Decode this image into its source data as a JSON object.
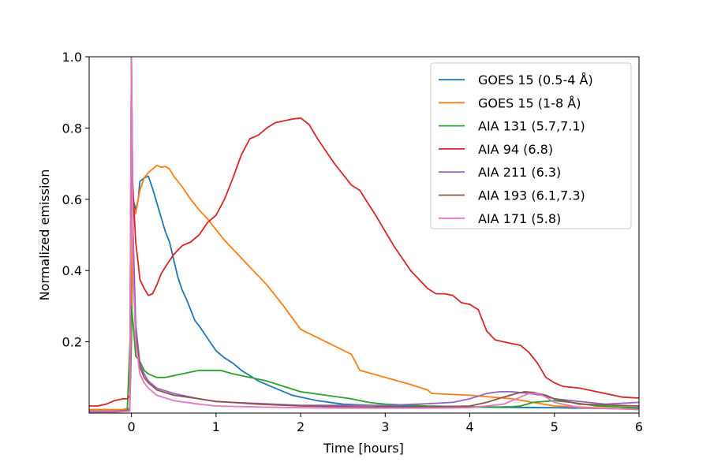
{
  "chart_data": {
    "type": "line",
    "title": "",
    "xlabel": "Time [hours]",
    "ylabel": "Normalized emission",
    "xlim": [
      -0.5,
      6
    ],
    "ylim": [
      0,
      1.0
    ],
    "xticks": [
      0,
      1,
      2,
      3,
      4,
      5,
      6
    ],
    "yticks": [
      0.2,
      0.4,
      0.6,
      0.8,
      1.0
    ],
    "xtick_labels": [
      "0",
      "1",
      "2",
      "3",
      "4",
      "5",
      "6"
    ],
    "ytick_labels": [
      "0.2",
      "0.4",
      "0.6",
      "0.8",
      "1.0"
    ],
    "grid": false,
    "legend_position": "top-right",
    "series": [
      {
        "name": "GOES 15 (0.5-4 Å)",
        "color": "#1f77b4",
        "x": [
          -0.5,
          -0.3,
          -0.1,
          -0.02,
          0.0,
          0.02,
          0.05,
          0.08,
          0.1,
          0.15,
          0.2,
          0.25,
          0.3,
          0.35,
          0.4,
          0.45,
          0.5,
          0.55,
          0.6,
          0.65,
          0.7,
          0.75,
          0.8,
          0.9,
          1.0,
          1.1,
          1.2,
          1.3,
          1.4,
          1.5,
          1.7,
          1.9,
          2.0,
          2.2,
          2.5,
          3.0,
          3.5,
          4.0,
          4.5,
          5.0,
          5.5,
          6.0
        ],
        "y": [
          0.005,
          0.005,
          0.005,
          0.01,
          0.2,
          0.6,
          0.57,
          0.6,
          0.65,
          0.66,
          0.665,
          0.63,
          0.59,
          0.55,
          0.51,
          0.48,
          0.43,
          0.38,
          0.345,
          0.32,
          0.29,
          0.26,
          0.245,
          0.21,
          0.175,
          0.155,
          0.14,
          0.12,
          0.105,
          0.09,
          0.07,
          0.05,
          0.045,
          0.035,
          0.025,
          0.02,
          0.018,
          0.017,
          0.016,
          0.015,
          0.013,
          0.012
        ]
      },
      {
        "name": "GOES 15 (1-8 Å)",
        "color": "#ff7f0e",
        "x": [
          -0.5,
          -0.3,
          -0.1,
          -0.02,
          0.0,
          0.02,
          0.05,
          0.08,
          0.1,
          0.15,
          0.2,
          0.25,
          0.3,
          0.35,
          0.4,
          0.45,
          0.5,
          0.6,
          0.7,
          0.8,
          0.9,
          1.0,
          1.1,
          1.2,
          1.4,
          1.6,
          1.8,
          2.0,
          2.3,
          2.6,
          2.7,
          3.0,
          3.3,
          3.5,
          3.55,
          4.0,
          4.5,
          5.0,
          5.5,
          6.0
        ],
        "y": [
          0.01,
          0.01,
          0.01,
          0.015,
          0.3,
          0.58,
          0.56,
          0.6,
          0.625,
          0.66,
          0.675,
          0.685,
          0.695,
          0.69,
          0.692,
          0.685,
          0.665,
          0.635,
          0.6,
          0.57,
          0.545,
          0.515,
          0.485,
          0.46,
          0.41,
          0.36,
          0.3,
          0.235,
          0.2,
          0.165,
          0.12,
          0.1,
          0.08,
          0.065,
          0.055,
          0.05,
          0.04,
          0.02,
          0.015,
          0.01
        ]
      },
      {
        "name": "AIA 131 (5.7,7.1)",
        "color": "#2ca02c",
        "x": [
          -0.5,
          -0.2,
          -0.05,
          0.0,
          0.02,
          0.05,
          0.1,
          0.15,
          0.2,
          0.3,
          0.4,
          0.5,
          0.6,
          0.7,
          0.8,
          0.9,
          1.0,
          1.05,
          1.2,
          1.4,
          1.6,
          1.8,
          2.0,
          2.3,
          2.6,
          2.8,
          3.0,
          3.5,
          4.0,
          4.3,
          4.5,
          4.6,
          4.75,
          5.0,
          5.2,
          5.5,
          6.0
        ],
        "y": [
          0.005,
          0.005,
          0.008,
          0.3,
          0.25,
          0.16,
          0.145,
          0.12,
          0.11,
          0.1,
          0.1,
          0.105,
          0.11,
          0.115,
          0.12,
          0.12,
          0.12,
          0.12,
          0.11,
          0.1,
          0.09,
          0.075,
          0.06,
          0.05,
          0.04,
          0.03,
          0.025,
          0.02,
          0.018,
          0.017,
          0.018,
          0.02,
          0.03,
          0.035,
          0.03,
          0.02,
          0.015
        ]
      },
      {
        "name": "AIA 94 (6.8)",
        "color": "#d62728",
        "x": [
          -0.5,
          -0.4,
          -0.3,
          -0.2,
          -0.1,
          -0.05,
          -0.02,
          0.0,
          0.02,
          0.05,
          0.08,
          0.1,
          0.15,
          0.2,
          0.25,
          0.3,
          0.35,
          0.4,
          0.5,
          0.6,
          0.7,
          0.8,
          0.9,
          1.0,
          1.1,
          1.2,
          1.3,
          1.4,
          1.5,
          1.6,
          1.7,
          1.8,
          1.9,
          2.0,
          2.1,
          2.2,
          2.4,
          2.6,
          2.7,
          2.9,
          3.1,
          3.3,
          3.5,
          3.6,
          3.7,
          3.8,
          3.9,
          4.0,
          4.1,
          4.2,
          4.3,
          4.4,
          4.6,
          4.7,
          4.8,
          4.9,
          5.0,
          5.1,
          5.3,
          5.5,
          5.7,
          5.8,
          6.0
        ],
        "y": [
          0.02,
          0.02,
          0.025,
          0.035,
          0.04,
          0.04,
          0.05,
          0.73,
          0.62,
          0.48,
          0.42,
          0.375,
          0.35,
          0.33,
          0.335,
          0.36,
          0.39,
          0.41,
          0.445,
          0.47,
          0.48,
          0.5,
          0.535,
          0.555,
          0.6,
          0.66,
          0.725,
          0.77,
          0.78,
          0.8,
          0.815,
          0.82,
          0.825,
          0.828,
          0.81,
          0.77,
          0.7,
          0.64,
          0.625,
          0.55,
          0.47,
          0.4,
          0.35,
          0.335,
          0.335,
          0.33,
          0.31,
          0.305,
          0.29,
          0.23,
          0.205,
          0.2,
          0.19,
          0.17,
          0.14,
          0.1,
          0.085,
          0.075,
          0.07,
          0.06,
          0.05,
          0.045,
          0.042
        ]
      },
      {
        "name": "AIA 211 (6.3)",
        "color": "#9467bd",
        "x": [
          -0.5,
          -0.2,
          -0.02,
          0.0,
          0.02,
          0.05,
          0.1,
          0.15,
          0.2,
          0.3,
          0.5,
          0.8,
          1.0,
          1.5,
          2.0,
          2.5,
          3.0,
          3.5,
          3.8,
          4.0,
          4.2,
          4.35,
          4.5,
          4.7,
          4.85,
          5.0,
          5.2,
          5.4,
          5.6,
          6.0
        ],
        "y": [
          0.005,
          0.005,
          0.008,
          1.0,
          0.5,
          0.25,
          0.14,
          0.11,
          0.09,
          0.07,
          0.055,
          0.04,
          0.032,
          0.027,
          0.022,
          0.022,
          0.022,
          0.026,
          0.03,
          0.04,
          0.055,
          0.06,
          0.06,
          0.055,
          0.05,
          0.04,
          0.035,
          0.03,
          0.025,
          0.03
        ]
      },
      {
        "name": "AIA 193 (6.1,7.3)",
        "color": "#8c564b",
        "x": [
          -0.5,
          -0.2,
          -0.02,
          0.0,
          0.02,
          0.05,
          0.1,
          0.15,
          0.2,
          0.3,
          0.5,
          0.8,
          1.0,
          1.5,
          2.0,
          2.5,
          3.0,
          3.5,
          4.0,
          4.2,
          4.4,
          4.55,
          4.65,
          4.75,
          4.9,
          5.0,
          5.3,
          6.0
        ],
        "y": [
          0.004,
          0.004,
          0.006,
          1.0,
          0.45,
          0.22,
          0.13,
          0.1,
          0.085,
          0.065,
          0.05,
          0.04,
          0.033,
          0.025,
          0.02,
          0.018,
          0.017,
          0.017,
          0.02,
          0.03,
          0.045,
          0.055,
          0.06,
          0.058,
          0.05,
          0.04,
          0.025,
          0.02
        ]
      },
      {
        "name": "AIA 171 (5.8)",
        "color": "#e377c2",
        "x": [
          -0.5,
          -0.2,
          -0.02,
          0.0,
          0.02,
          0.05,
          0.1,
          0.15,
          0.2,
          0.3,
          0.5,
          0.8,
          1.0,
          1.5,
          2.0,
          2.5,
          3.0,
          3.5,
          4.0,
          4.2,
          4.4,
          4.5,
          4.6,
          4.7,
          4.8,
          4.9,
          5.0,
          5.3,
          6.0
        ],
        "y": [
          0.003,
          0.003,
          0.005,
          1.0,
          0.4,
          0.2,
          0.11,
          0.085,
          0.07,
          0.05,
          0.035,
          0.025,
          0.02,
          0.017,
          0.015,
          0.014,
          0.014,
          0.014,
          0.015,
          0.02,
          0.025,
          0.035,
          0.045,
          0.055,
          0.055,
          0.045,
          0.03,
          0.015,
          0.01
        ]
      }
    ]
  }
}
